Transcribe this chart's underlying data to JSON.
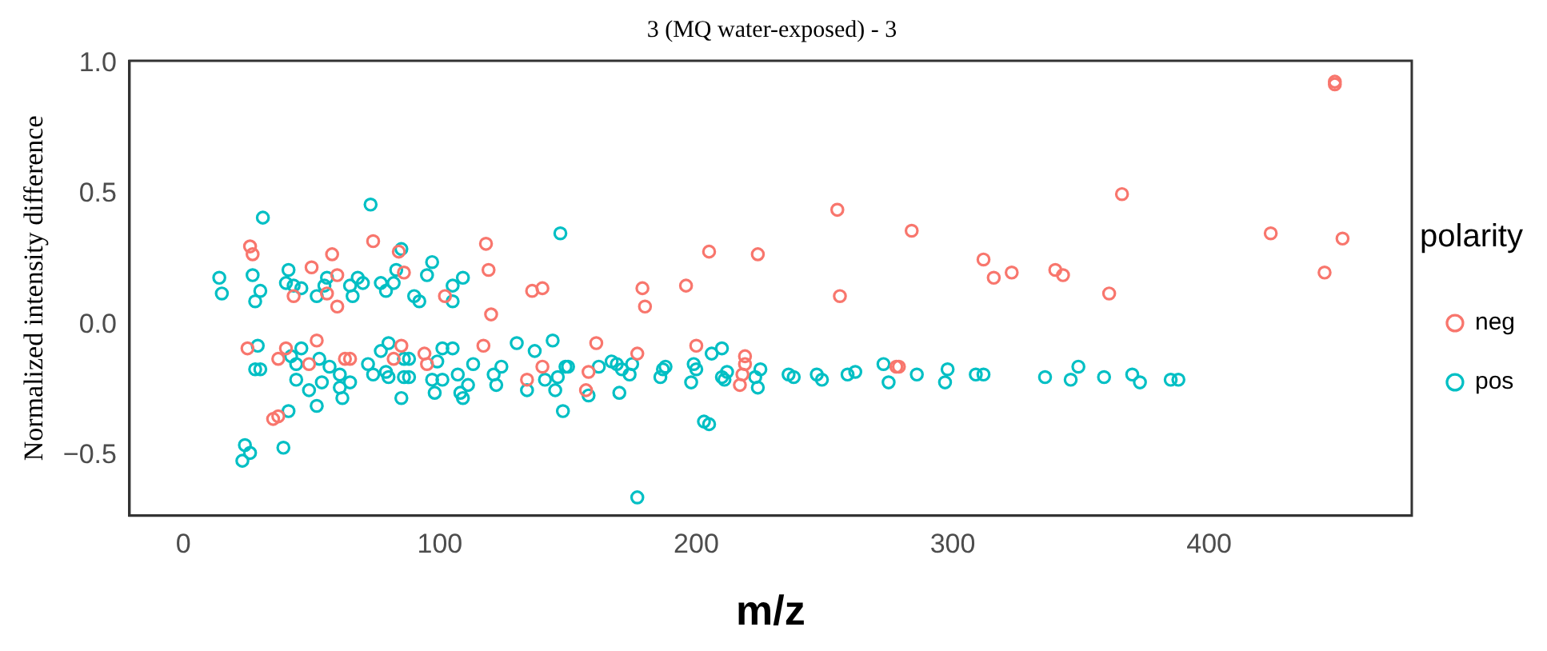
{
  "chart_data": {
    "type": "scatter",
    "title": "3 (MQ water-exposed) - 3",
    "xlabel": "m/z",
    "ylabel": "Normalized intensity difference",
    "legend_title": "polarity",
    "legend": "right",
    "grid": false,
    "marker": "circle",
    "xlim": [
      -21,
      479
    ],
    "xticks": [
      0,
      100,
      200,
      300,
      400
    ],
    "ylim": [
      -0.73,
      1.01
    ],
    "yticks": [
      {
        "value": -0.5,
        "label": "−0.5"
      },
      {
        "value": 0,
        "label": "0.0"
      },
      {
        "value": 0.5,
        "label": "0.5"
      },
      {
        "value": 1,
        "label": "1.0"
      }
    ],
    "series": [
      {
        "name": "neg",
        "color": "#f8766d",
        "x": [
          26,
          27,
          58,
          74,
          84,
          86,
          50,
          60,
          60,
          43,
          56,
          102,
          118,
          119,
          120,
          136,
          140,
          25,
          40,
          37,
          52,
          63,
          65,
          85,
          94,
          95,
          117,
          140,
          134,
          35,
          37,
          49,
          82,
          255,
          256,
          284,
          205,
          224,
          179,
          180,
          196,
          312,
          161,
          200,
          177,
          158,
          157,
          219,
          219,
          218,
          217,
          278,
          279,
          449,
          449,
          366,
          424,
          452,
          445,
          316,
          323,
          340,
          343,
          361
        ],
        "values": [
          0.3,
          0.27,
          0.27,
          0.32,
          0.28,
          0.2,
          0.22,
          0.19,
          0.07,
          0.11,
          0.12,
          0.11,
          0.31,
          0.21,
          0.04,
          0.13,
          0.14,
          -0.09,
          -0.09,
          -0.13,
          -0.06,
          -0.13,
          -0.13,
          -0.08,
          -0.11,
          -0.15,
          -0.08,
          -0.16,
          -0.21,
          -0.36,
          -0.35,
          -0.15,
          -0.13,
          0.44,
          0.11,
          0.36,
          0.28,
          0.27,
          0.14,
          0.07,
          0.15,
          0.25,
          -0.07,
          -0.08,
          -0.11,
          -0.18,
          -0.25,
          -0.12,
          -0.15,
          -0.19,
          -0.23,
          -0.16,
          -0.16,
          0.93,
          0.92,
          0.5,
          0.35,
          0.33,
          0.2,
          0.18,
          0.2,
          0.21,
          0.19,
          0.12
        ]
      },
      {
        "name": "pos",
        "color": "#00bfc4",
        "x": [
          31,
          73,
          14,
          15,
          27,
          30,
          28,
          41,
          40,
          43,
          46,
          52,
          55,
          56,
          66,
          65,
          68,
          70,
          77,
          79,
          82,
          83,
          85,
          90,
          92,
          97,
          95,
          105,
          105,
          109,
          147,
          23,
          24,
          26,
          39,
          41,
          52,
          29,
          28,
          30,
          46,
          42,
          44,
          44,
          49,
          53,
          57,
          54,
          61,
          61,
          62,
          65,
          72,
          74,
          77,
          80,
          80,
          86,
          88,
          86,
          88,
          85,
          97,
          98,
          101,
          99,
          101,
          105,
          107,
          108,
          109,
          111,
          113,
          121,
          122,
          124,
          130,
          134,
          137,
          141,
          144,
          145,
          148,
          149,
          79,
          150,
          146,
          158,
          162,
          167,
          169,
          171,
          174,
          175,
          170,
          177,
          186,
          187,
          188,
          198,
          199,
          200,
          203,
          205,
          206,
          210,
          210,
          211,
          212,
          223,
          224,
          225,
          236,
          238,
          247,
          249,
          259,
          262,
          273,
          275,
          286,
          297,
          298,
          309,
          312,
          336,
          346,
          349,
          359,
          370,
          373,
          385,
          388
        ],
        "values": [
          0.41,
          0.46,
          0.18,
          0.12,
          0.19,
          0.13,
          0.09,
          0.21,
          0.16,
          0.15,
          0.14,
          0.11,
          0.15,
          0.18,
          0.11,
          0.15,
          0.18,
          0.16,
          0.16,
          0.13,
          0.16,
          0.21,
          0.29,
          0.11,
          0.09,
          0.24,
          0.19,
          0.15,
          0.09,
          0.18,
          0.35,
          -0.52,
          -0.46,
          -0.49,
          -0.47,
          -0.33,
          -0.31,
          -0.08,
          -0.17,
          -0.17,
          -0.09,
          -0.12,
          -0.15,
          -0.21,
          -0.25,
          -0.13,
          -0.16,
          -0.22,
          -0.19,
          -0.24,
          -0.28,
          -0.22,
          -0.15,
          -0.19,
          -0.1,
          -0.07,
          -0.2,
          -0.13,
          -0.13,
          -0.2,
          -0.2,
          -0.28,
          -0.21,
          -0.26,
          -0.21,
          -0.14,
          -0.09,
          -0.09,
          -0.19,
          -0.26,
          -0.28,
          -0.23,
          -0.15,
          -0.19,
          -0.23,
          -0.16,
          -0.07,
          -0.25,
          -0.1,
          -0.21,
          -0.06,
          -0.25,
          -0.33,
          -0.16,
          -0.18,
          -0.16,
          -0.2,
          -0.27,
          -0.16,
          -0.14,
          -0.15,
          -0.17,
          -0.19,
          -0.15,
          -0.26,
          -0.66,
          -0.2,
          -0.17,
          -0.16,
          -0.22,
          -0.15,
          -0.17,
          -0.37,
          -0.38,
          -0.11,
          -0.09,
          -0.2,
          -0.21,
          -0.18,
          -0.2,
          -0.24,
          -0.17,
          -0.19,
          -0.2,
          -0.19,
          -0.21,
          -0.19,
          -0.18,
          -0.15,
          -0.22,
          -0.19,
          -0.22,
          -0.17,
          -0.19,
          -0.19,
          -0.2,
          -0.21,
          -0.16,
          -0.2,
          -0.19,
          -0.22,
          -0.21,
          -0.21
        ]
      }
    ]
  }
}
